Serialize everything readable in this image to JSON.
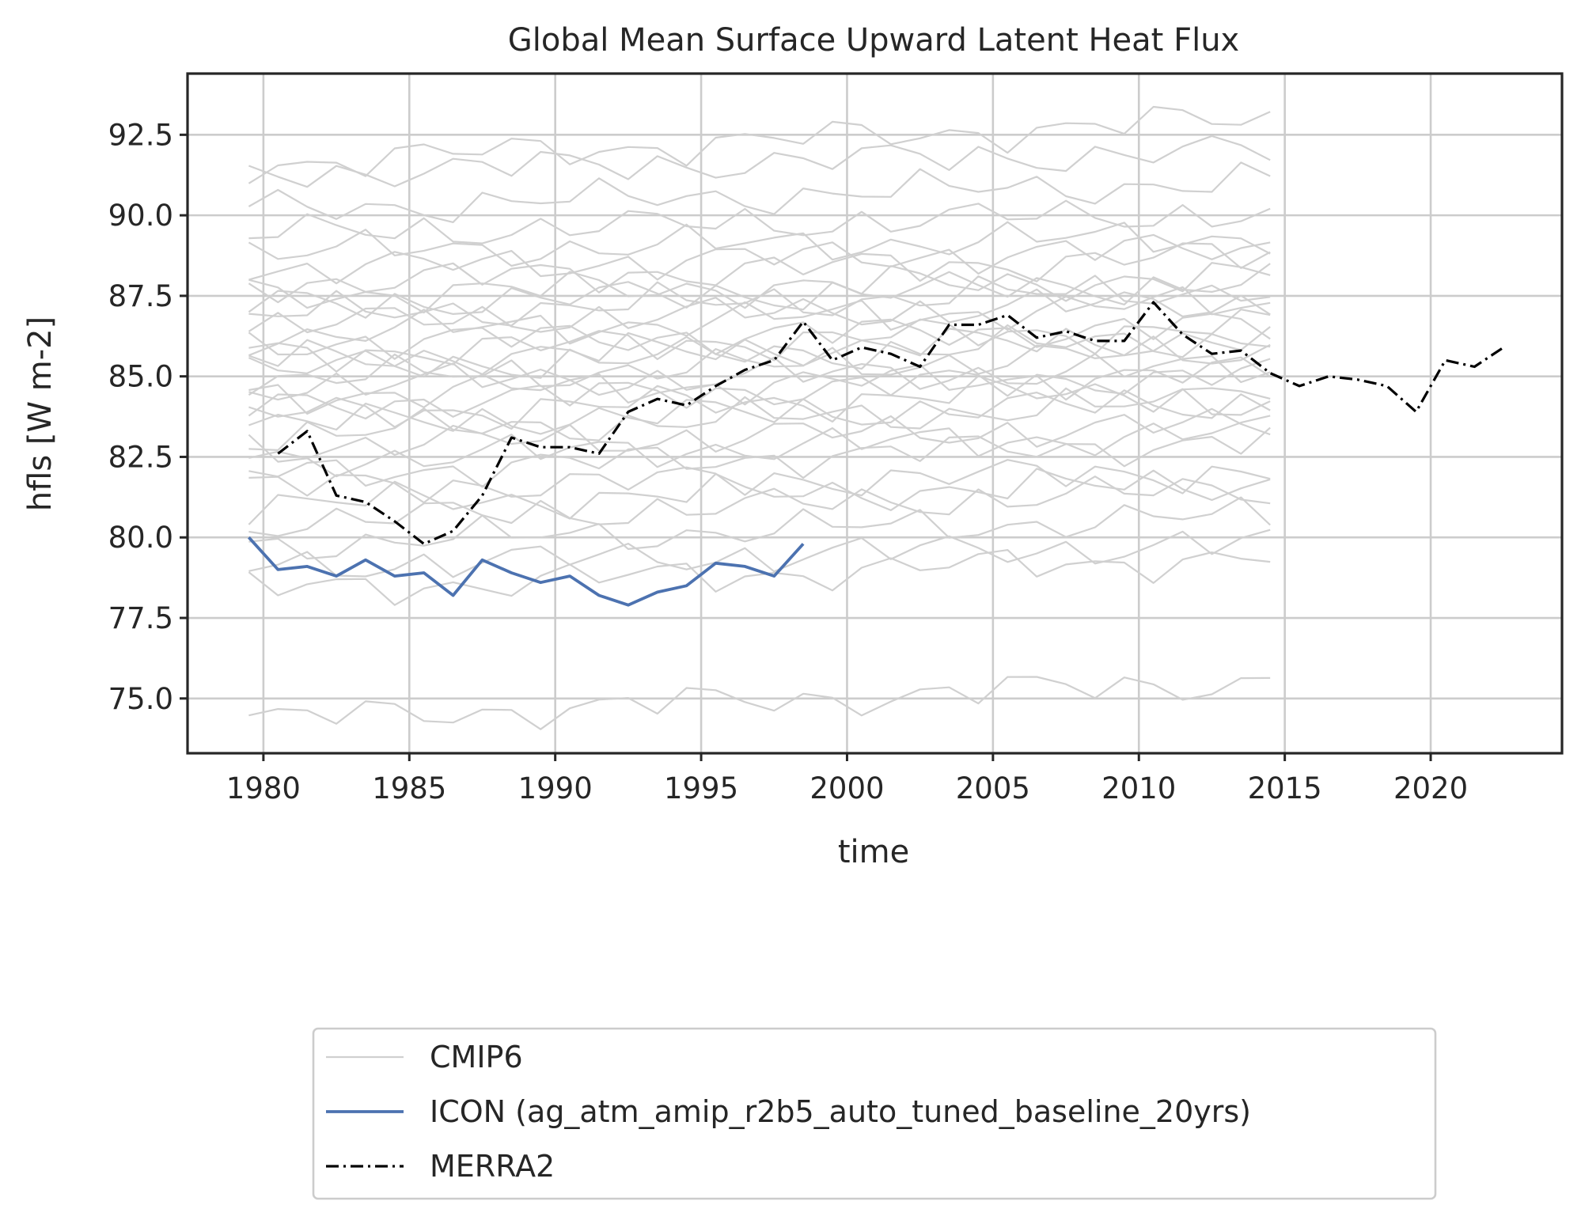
{
  "chart_data": {
    "type": "line",
    "title": "Global Mean Surface Upward Latent Heat Flux",
    "xlabel": "time",
    "ylabel": "hfls [W m-2]",
    "xlim": [
      1977.4,
      2024.5
    ],
    "ylim": [
      73.3,
      94.4
    ],
    "xticks": [
      1980,
      1985,
      1990,
      1995,
      2000,
      2005,
      2010,
      2015,
      2020
    ],
    "xtick_labels": [
      "1980",
      "1985",
      "1990",
      "1995",
      "2000",
      "2005",
      "2010",
      "2015",
      "2020"
    ],
    "yticks": [
      75.0,
      77.5,
      80.0,
      82.5,
      85.0,
      87.5,
      90.0,
      92.5
    ],
    "ytick_labels": [
      "75.0",
      "77.5",
      "80.0",
      "82.5",
      "85.0",
      "87.5",
      "90.0",
      "92.5"
    ],
    "grid": true,
    "legend": {
      "placement": "below-center",
      "entries": [
        {
          "label": "CMIP6",
          "style": "solid",
          "color": "#d0d0d0"
        },
        {
          "label": "ICON (ag_atm_amip_r2b5_auto_tuned_baseline_20yrs)",
          "style": "solid",
          "color": "#4c72b0"
        },
        {
          "label": "MERRA2",
          "style": "dashdot",
          "color": "#000000"
        }
      ]
    },
    "series": [
      {
        "name": "ICON (ag_atm_amip_r2b5_auto_tuned_baseline_20yrs)",
        "color": "#4c72b0",
        "x": [
          1979.5,
          1980.5,
          1981.5,
          1982.5,
          1983.5,
          1984.5,
          1985.5,
          1986.5,
          1987.5,
          1988.5,
          1989.5,
          1990.5,
          1991.5,
          1992.5,
          1993.5,
          1994.5,
          1995.5,
          1996.5,
          1997.5,
          1998.5
        ],
        "y": [
          80.0,
          79.0,
          79.1,
          78.8,
          79.3,
          78.8,
          78.9,
          78.2,
          79.3,
          78.9,
          78.6,
          78.8,
          78.2,
          77.9,
          78.3,
          78.5,
          79.2,
          79.1,
          78.8,
          79.8
        ]
      },
      {
        "name": "MERRA2",
        "color": "#000000",
        "x": [
          1980.5,
          1981.5,
          1982.5,
          1983.5,
          1984.5,
          1985.5,
          1986.5,
          1987.5,
          1988.5,
          1989.5,
          1990.5,
          1991.5,
          1992.5,
          1993.5,
          1994.5,
          1995.5,
          1996.5,
          1997.5,
          1998.5,
          1999.5,
          2000.5,
          2001.5,
          2002.5,
          2003.5,
          2004.5,
          2005.5,
          2006.5,
          2007.5,
          2008.5,
          2009.5,
          2010.5,
          2011.5,
          2012.5,
          2013.5,
          2014.5,
          2015.5,
          2016.5,
          2017.5,
          2018.5,
          2019.5,
          2020.5,
          2021.5,
          2022.5
        ],
        "y": [
          82.6,
          83.3,
          81.3,
          81.1,
          80.5,
          79.8,
          80.2,
          81.3,
          83.1,
          82.8,
          82.8,
          82.6,
          83.9,
          84.3,
          84.1,
          84.7,
          85.2,
          85.5,
          86.7,
          85.5,
          85.9,
          85.7,
          85.3,
          86.6,
          86.6,
          86.9,
          86.2,
          86.4,
          86.1,
          86.1,
          87.3,
          86.3,
          85.7,
          85.8,
          85.1,
          84.7,
          85.0,
          84.9,
          84.7,
          83.9,
          85.5,
          85.3,
          85.9
        ]
      }
    ],
    "cmip6": {
      "name": "CMIP6",
      "color": "#d0d0d0",
      "x": [
        1979.5,
        1980.5,
        1981.5,
        1982.5,
        1983.5,
        1984.5,
        1985.5,
        1986.5,
        1987.5,
        1988.5,
        1989.5,
        1990.5,
        1991.5,
        1992.5,
        1993.5,
        1994.5,
        1995.5,
        1996.5,
        1997.5,
        1998.5,
        1999.5,
        2000.5,
        2001.5,
        2002.5,
        2003.5,
        2004.5,
        2005.5,
        2006.5,
        2007.5,
        2008.5,
        2009.5,
        2010.5,
        2011.5,
        2012.5,
        2013.5,
        2014.5
      ],
      "baselines": [
        74.5,
        78.5,
        79.2,
        79.9,
        80.6,
        81.1,
        81.6,
        82.1,
        82.5,
        82.9,
        83.3,
        83.6,
        83.9,
        84.2,
        84.5,
        84.8,
        85.0,
        85.3,
        85.6,
        85.8,
        86.1,
        86.4,
        86.7,
        87.0,
        87.3,
        87.6,
        88.0,
        88.4,
        88.9,
        89.5,
        90.3,
        91.4,
        91.8
      ],
      "trends": [
        0.035,
        0.03,
        0.02,
        0.025,
        0.03,
        0.02,
        0.015,
        0.03,
        0.025,
        0.02,
        0.03,
        0.02,
        0.025,
        0.03,
        0.02,
        0.015,
        0.025,
        0.03,
        0.02,
        0.025,
        0.015,
        0.03,
        0.02,
        0.025,
        0.02,
        0.015,
        0.025,
        0.02,
        0.015,
        0.02,
        0.025,
        0.02,
        0.04
      ]
    }
  }
}
